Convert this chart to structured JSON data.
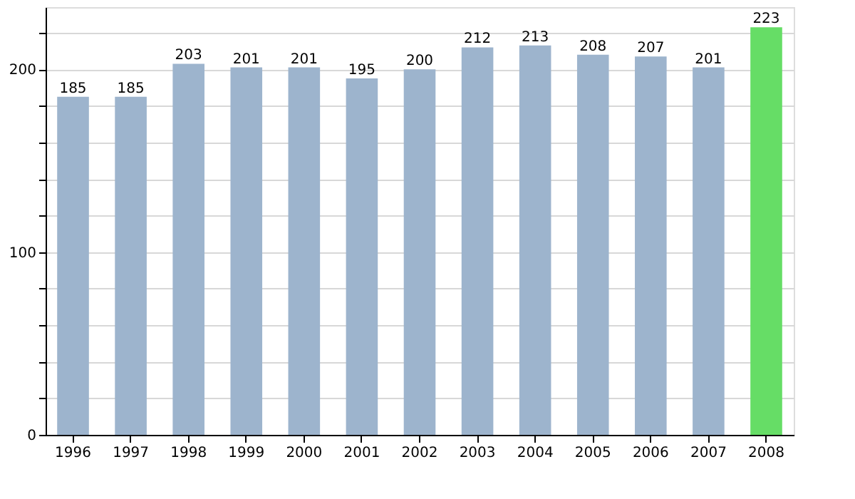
{
  "chart_data": {
    "type": "bar",
    "categories": [
      "1996",
      "1997",
      "1998",
      "1999",
      "2000",
      "2001",
      "2002",
      "2003",
      "2004",
      "2005",
      "2006",
      "2007",
      "2008"
    ],
    "values": [
      185,
      185,
      203,
      201,
      201,
      195,
      200,
      212,
      213,
      208,
      207,
      201,
      223
    ],
    "colors": [
      "#9db4cd",
      "#9db4cd",
      "#9db4cd",
      "#9db4cd",
      "#9db4cd",
      "#9db4cd",
      "#9db4cd",
      "#9db4cd",
      "#9db4cd",
      "#9db4cd",
      "#9db4cd",
      "#9db4cd",
      "#66dd66"
    ],
    "ylim": [
      0,
      234
    ],
    "yticks": [
      0,
      {
        "value": 20,
        "label": null
      },
      {
        "value": 40,
        "label": null
      },
      {
        "value": 60,
        "label": null
      },
      {
        "value": 80,
        "label": null
      },
      100,
      {
        "value": 120,
        "label": null
      },
      {
        "value": 140,
        "label": null
      },
      {
        "value": 160,
        "label": null
      },
      {
        "value": 180,
        "label": null
      },
      200,
      {
        "value": 220,
        "label": null
      }
    ],
    "grid": "y",
    "data_labels": true
  }
}
